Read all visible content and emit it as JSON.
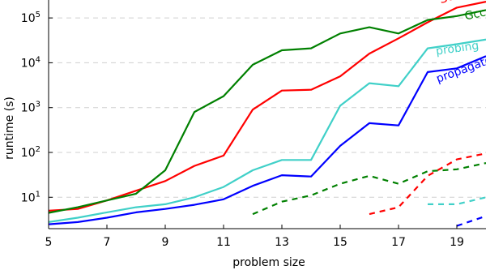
{
  "chart_data": {
    "type": "line",
    "xlabel": "problem size",
    "ylabel": "runtime (s)",
    "xlim": [
      5,
      20
    ],
    "ylim_log10": [
      0.3,
      5.4
    ],
    "y_scale": "log",
    "grid": "horizontal dashed",
    "x_ticks": [
      "5",
      "7",
      "9",
      "11",
      "13",
      "15",
      "17",
      "19"
    ],
    "y_ticks": [
      {
        "base": "10",
        "exp": "1"
      },
      {
        "base": "10",
        "exp": "2"
      },
      {
        "base": "10",
        "exp": "3"
      },
      {
        "base": "10",
        "exp": "4"
      },
      {
        "base": "10",
        "exp": "5"
      }
    ],
    "series": [
      {
        "name": "Sortedness",
        "color": "#ff0000",
        "style": "solid",
        "x": [
          5,
          6,
          7,
          8,
          9,
          10,
          11,
          12,
          13,
          14,
          15,
          16,
          17,
          18,
          19,
          20
        ],
        "y": [
          5,
          5.5,
          8.5,
          14,
          23,
          50,
          85,
          900,
          2400,
          2500,
          5000,
          16000,
          35000,
          80000,
          170000,
          230000
        ]
      },
      {
        "name": "Gcc",
        "color": "#008000",
        "style": "solid",
        "x": [
          5,
          6,
          7,
          8,
          9,
          10,
          11,
          12,
          13,
          14,
          15,
          16,
          17,
          18,
          19,
          20
        ],
        "y": [
          4.5,
          6,
          8.5,
          12,
          40,
          800,
          1800,
          9000,
          19000,
          21000,
          45000,
          62000,
          45000,
          90000,
          110000,
          150000
        ]
      },
      {
        "name": "probing",
        "color": "#40d0c8",
        "style": "solid",
        "x": [
          5,
          6,
          7,
          8,
          9,
          10,
          11,
          12,
          13,
          14,
          15,
          16,
          17,
          18,
          19,
          20
        ],
        "y": [
          2.8,
          3.5,
          4.6,
          6,
          7,
          10,
          17,
          40,
          68,
          68,
          1100,
          3500,
          3000,
          21000,
          26000,
          33000
        ]
      },
      {
        "name": "propagator",
        "color": "#0000ff",
        "style": "solid",
        "x": [
          5,
          6,
          7,
          8,
          9,
          10,
          11,
          12,
          13,
          14,
          15,
          16,
          17,
          18,
          19,
          20
        ],
        "y": [
          2.5,
          2.8,
          3.5,
          4.6,
          5.5,
          6.8,
          9,
          18,
          31,
          29,
          140,
          450,
          400,
          6200,
          7500,
          14000
        ]
      },
      {
        "name": "",
        "color": "#ff0000",
        "style": "dashed",
        "x": [
          16,
          17,
          18,
          19,
          20
        ],
        "y": [
          4.2,
          6,
          30,
          70,
          95
        ]
      },
      {
        "name": "",
        "color": "#008000",
        "style": "dashed",
        "x": [
          12,
          13,
          14,
          15,
          16,
          17,
          18,
          19,
          20
        ],
        "y": [
          4.2,
          8,
          11,
          20,
          30,
          20,
          38,
          42,
          58
        ]
      },
      {
        "name": "",
        "color": "#40d0c8",
        "style": "dashed",
        "x": [
          18,
          19,
          20
        ],
        "y": [
          7,
          7,
          10
        ]
      },
      {
        "name": "",
        "color": "#0000ff",
        "style": "dashed",
        "x": [
          19,
          20
        ],
        "y": [
          2.3,
          3.8
        ]
      }
    ],
    "line_labels": [
      {
        "text": "Sortedness",
        "color": "#ff0000",
        "x": 18.45,
        "y": 210000,
        "angle": -18,
        "size": 15
      },
      {
        "text": "Gcc",
        "color": "#008000",
        "x": 19.3,
        "y": 90000,
        "angle": -12,
        "size": 14
      },
      {
        "text": "probing",
        "color": "#40d0c8",
        "x": 18.3,
        "y": 15000,
        "angle": -8,
        "size": 14
      },
      {
        "text": "propagator",
        "color": "#0000ff",
        "x": 18.35,
        "y": 3600,
        "angle": -20,
        "size": 14
      }
    ]
  }
}
